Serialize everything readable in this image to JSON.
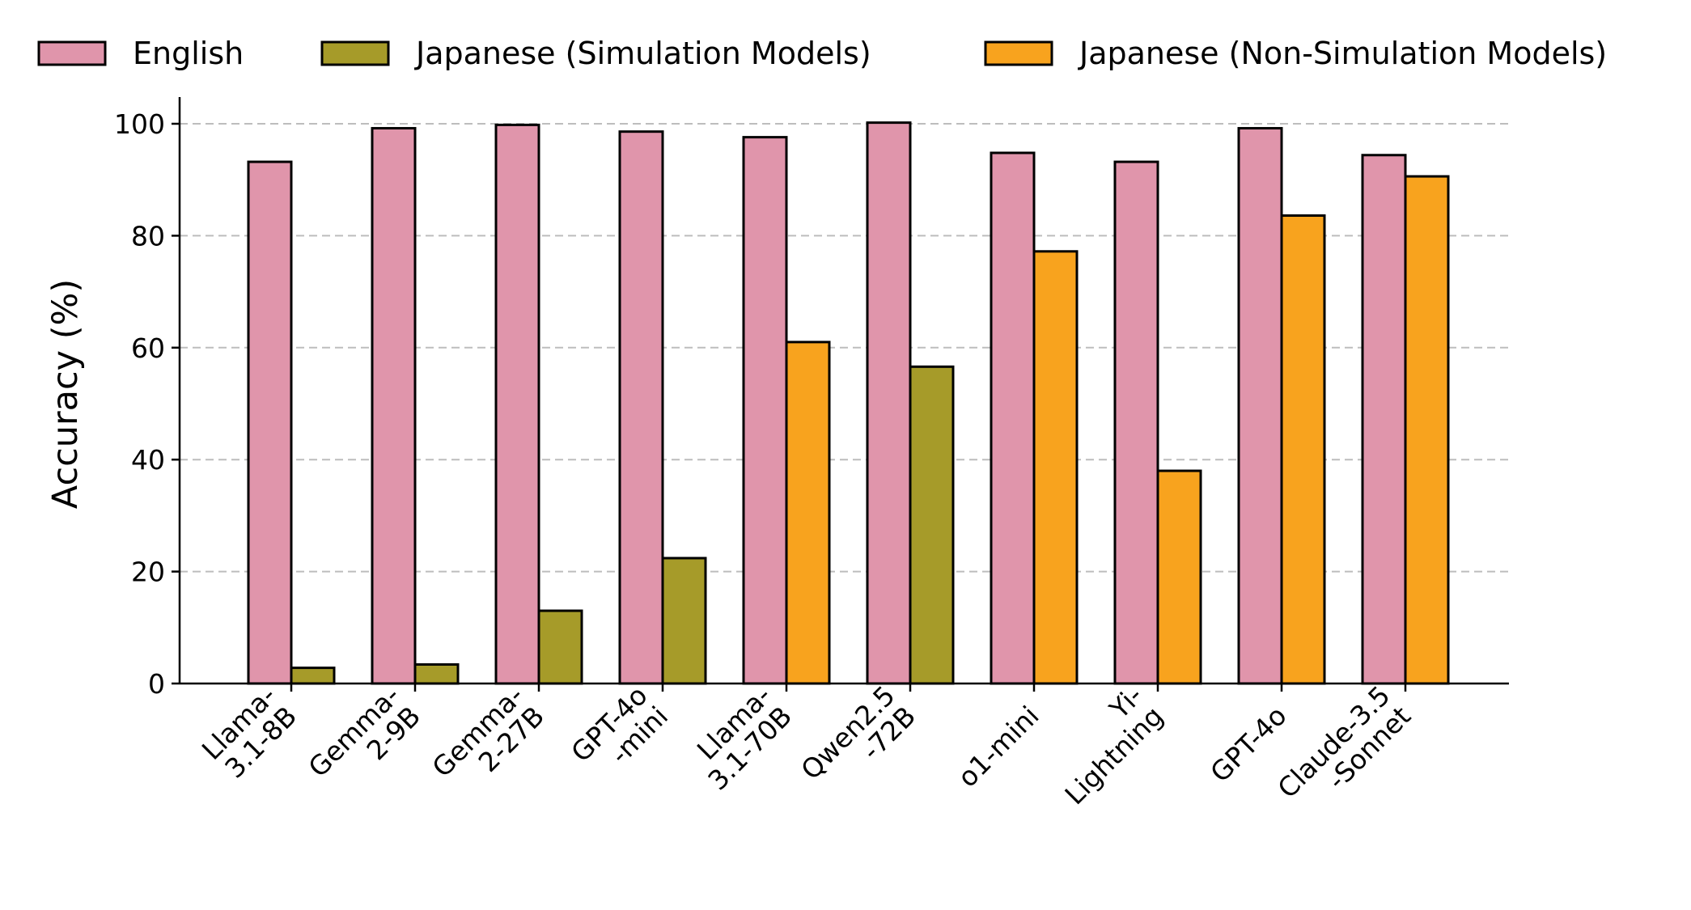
{
  "chart_data": {
    "type": "bar",
    "title": "",
    "xlabel": "",
    "ylabel": "Accuracy (%)",
    "ylim": [
      0,
      105
    ],
    "yticks": [
      0,
      20,
      40,
      60,
      80,
      100
    ],
    "grid": "y-dashed",
    "legend_position": "top",
    "categories": [
      [
        "Llama-",
        "3.1-8B"
      ],
      [
        "Gemma-",
        "2-9B"
      ],
      [
        "Gemma-",
        "2-27B"
      ],
      [
        "GPT-4o",
        "-mini"
      ],
      [
        "Llama-",
        "3.1-70B"
      ],
      [
        "Qwen2.5",
        "-72B"
      ],
      [
        "o1-mini"
      ],
      [
        "Yi-",
        "Lightning"
      ],
      [
        "GPT-4o"
      ],
      [
        "Claude-3.5",
        "-Sonnet"
      ]
    ],
    "legend": [
      {
        "label": "English",
        "color": "#e095ab"
      },
      {
        "label": "Japanese (Simulation Models)",
        "color": "#a69b29"
      },
      {
        "label": "Japanese (Non-Simulation Models)",
        "color": "#f8a31e"
      }
    ],
    "series": [
      {
        "name": "English",
        "values": [
          93.2,
          99.2,
          99.8,
          98.6,
          97.6,
          100.2,
          94.8,
          93.2,
          99.2,
          94.4
        ]
      },
      {
        "name": "Japanese",
        "values": [
          2.8,
          3.4,
          13.0,
          22.4,
          61.0,
          56.6,
          77.2,
          38.0,
          83.6,
          90.6
        ],
        "group": [
          "Japanese (Simulation Models)",
          "Japanese (Simulation Models)",
          "Japanese (Simulation Models)",
          "Japanese (Simulation Models)",
          "Japanese (Non-Simulation Models)",
          "Japanese (Simulation Models)",
          "Japanese (Non-Simulation Models)",
          "Japanese (Non-Simulation Models)",
          "Japanese (Non-Simulation Models)",
          "Japanese (Non-Simulation Models)"
        ]
      }
    ]
  }
}
